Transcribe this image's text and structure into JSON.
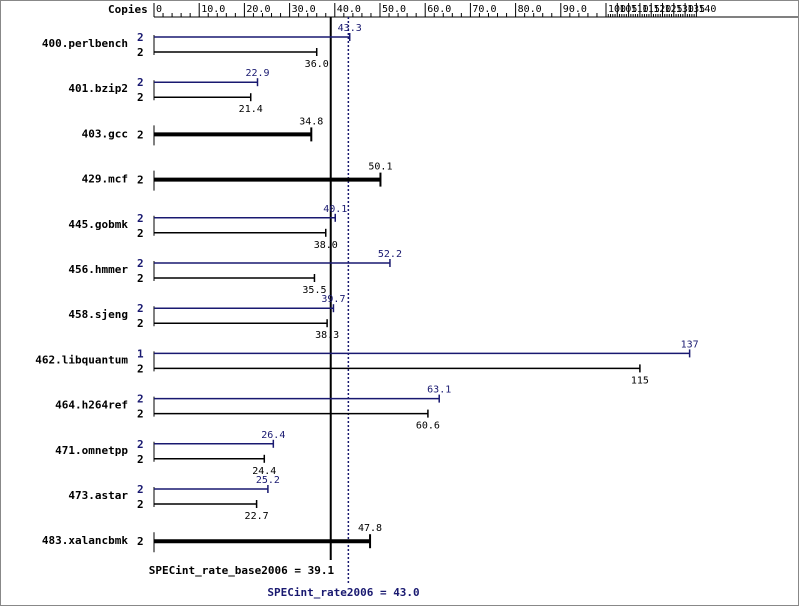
{
  "chart_data": {
    "type": "bar",
    "orientation": "horizontal",
    "copies_header": "Copies",
    "x_ticks": [
      0,
      10,
      20,
      30,
      40,
      50,
      60,
      70,
      80,
      90,
      100,
      105,
      110,
      115,
      120,
      125,
      130,
      135,
      140
    ],
    "x_tick_labels": [
      "0",
      "10.0",
      "20.0",
      "30.0",
      "40.0",
      "50.0",
      "60.0",
      "70.0",
      "80.0",
      "90.0",
      "100",
      "105",
      "110",
      "115",
      "120",
      "125",
      "130",
      "135",
      "140"
    ],
    "x_scale_note": "linear 0-100, compressed 100-140",
    "categories": [
      "400.perlbench",
      "401.bzip2",
      "403.gcc",
      "429.mcf",
      "445.gobmk",
      "456.hmmer",
      "458.sjeng",
      "462.libquantum",
      "464.h264ref",
      "471.omnetpp",
      "473.astar",
      "483.xalancbmk"
    ],
    "series": [
      {
        "key": "peak",
        "color": "#191970",
        "values": [
          43.3,
          22.9,
          null,
          null,
          40.1,
          52.2,
          39.7,
          137,
          63.1,
          26.4,
          25.2,
          null
        ],
        "labels": [
          "43.3",
          "22.9",
          "",
          "",
          "40.1",
          "52.2",
          "39.7",
          "137",
          "63.1",
          "26.4",
          "25.2",
          ""
        ],
        "copies": [
          "2",
          "2",
          "",
          "",
          "2",
          "2",
          "2",
          "1",
          "2",
          "2",
          "2",
          ""
        ]
      },
      {
        "key": "base",
        "color": "#000000",
        "values": [
          36.0,
          21.4,
          34.8,
          50.1,
          38.0,
          35.5,
          38.3,
          115,
          60.6,
          24.4,
          22.7,
          47.8
        ],
        "labels": [
          "36.0",
          "21.4",
          "34.8",
          "50.1",
          "38.0",
          "35.5",
          "38.3",
          "115",
          "60.6",
          "24.4",
          "22.7",
          "47.8"
        ],
        "copies": [
          "2",
          "2",
          "2",
          "2",
          "2",
          "2",
          "2",
          "2",
          "2",
          "2",
          "2",
          "2"
        ]
      }
    ],
    "reference_lines": [
      {
        "key": "base",
        "value": 39.1,
        "label": "SPECint_rate_base2006 = 39.1",
        "style": "solid",
        "color": "#000000"
      },
      {
        "key": "peak",
        "value": 43.0,
        "label": "SPECint_rate2006 = 43.0",
        "style": "dotted",
        "color": "#191970"
      }
    ]
  }
}
